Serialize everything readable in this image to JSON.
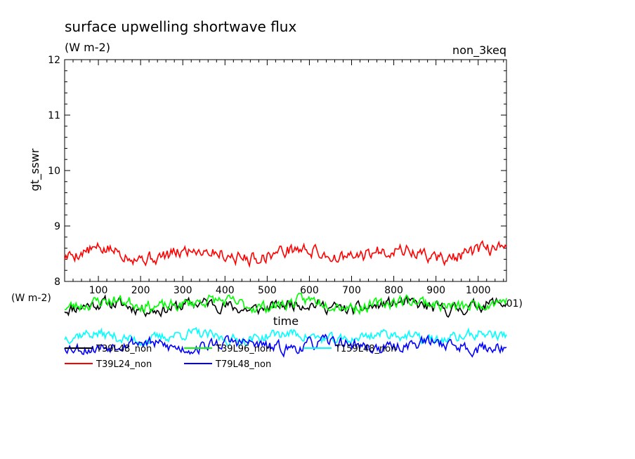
{
  "chart_data": {
    "type": "line",
    "title": "surface upwelling shortwave flux",
    "units": "(W m-2)",
    "experiment": "non_3keq",
    "ylabel": "gt_sswr",
    "xlabel": "time",
    "x_axis_note": "(W m-2)",
    "x_axis_trailing": "01)",
    "xlim": [
      20,
      1067
    ],
    "ylim": [
      8,
      12
    ],
    "x_ticks": [
      "100",
      "200",
      "300",
      "400",
      "500",
      "600",
      "700",
      "800",
      "900",
      "1000"
    ],
    "y_ticks": [
      "8",
      "9",
      "10",
      "11",
      "12"
    ],
    "x_start": 20,
    "x_step": 3,
    "series": [
      {
        "name": "T39L48_non",
        "color": "#000000",
        "mean": 7.55,
        "amp": 0.06,
        "noise": 0.045,
        "seed": 11,
        "clipped": true
      },
      {
        "name": "T39L96_non",
        "color": "#00ff00",
        "mean": 7.6,
        "amp": 0.06,
        "noise": 0.045,
        "seed": 23,
        "clipped": true
      },
      {
        "name": "T159L48_non",
        "color": "#00ffff",
        "mean": 7.0,
        "amp": 0.06,
        "noise": 0.04,
        "seed": 37,
        "clipped": true
      },
      {
        "name": "T39L24_non",
        "color": "#ff0000",
        "mean": 8.5,
        "amp": 0.08,
        "noise": 0.05,
        "seed": 5,
        "clipped": false
      },
      {
        "name": "T79L48_non",
        "color": "#0000ff",
        "mean": 6.85,
        "amp": 0.06,
        "noise": 0.045,
        "seed": 53,
        "clipped": true
      }
    ],
    "grid": false,
    "legend_position": "bottom-left"
  }
}
